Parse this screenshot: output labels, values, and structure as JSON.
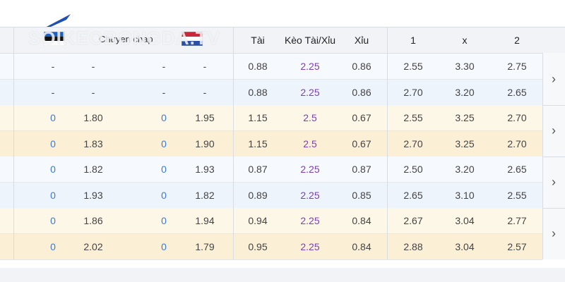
{
  "watermark": "SOIKEOBONGDA.TV",
  "header": {
    "team_label": "Chuyen chap",
    "tai": "Tài",
    "keo": "Kèo Tài/Xỉu",
    "xiu": "Xỉu",
    "c1": "1",
    "cx": "x",
    "c2": "2"
  },
  "icons": {
    "arrow": "chevron-right-icon",
    "flag_home": "estonia-flag-icon",
    "flag_away": "netherlands-flag-icon",
    "logo": "logo-icon"
  },
  "rows": [
    [
      "-",
      "-",
      "-",
      "-",
      "0.88",
      "2.25",
      "0.86",
      "2.55",
      "3.30",
      "2.75"
    ],
    [
      "-",
      "-",
      "-",
      "-",
      "0.88",
      "2.25",
      "0.86",
      "2.70",
      "3.20",
      "2.65"
    ],
    [
      "0",
      "1.80",
      "0",
      "1.95",
      "1.15",
      "2.5",
      "0.67",
      "2.55",
      "3.25",
      "2.70"
    ],
    [
      "0",
      "1.83",
      "0",
      "1.90",
      "1.15",
      "2.5",
      "0.67",
      "2.70",
      "3.25",
      "2.70"
    ],
    [
      "0",
      "1.82",
      "0",
      "1.93",
      "0.87",
      "2.25",
      "0.87",
      "2.50",
      "3.20",
      "2.65"
    ],
    [
      "0",
      "1.93",
      "0",
      "1.82",
      "0.89",
      "2.25",
      "0.85",
      "2.65",
      "3.10",
      "2.55"
    ],
    [
      "0",
      "1.86",
      "0",
      "1.94",
      "0.94",
      "2.25",
      "0.84",
      "2.67",
      "3.04",
      "2.77"
    ],
    [
      "0",
      "2.02",
      "0",
      "1.79",
      "0.95",
      "2.25",
      "0.84",
      "2.88",
      "3.04",
      "2.57"
    ]
  ],
  "arrows": [
    "›",
    "›",
    "›",
    "›"
  ]
}
